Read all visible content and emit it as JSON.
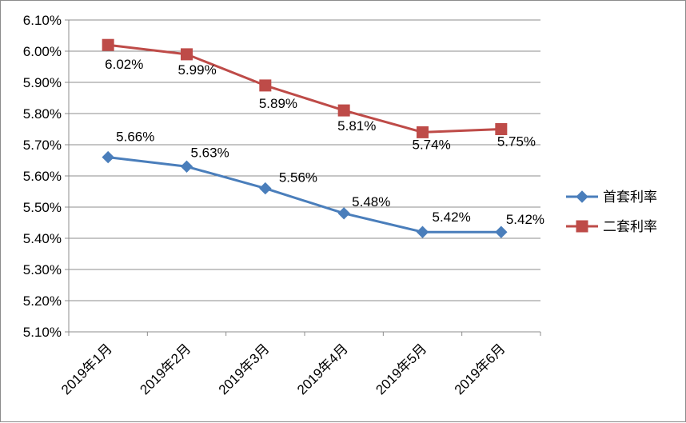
{
  "chart_data": {
    "type": "line",
    "categories": [
      "2019年1月",
      "2019年2月",
      "2019年3月",
      "2019年4月",
      "2019年5月",
      "2019年6月"
    ],
    "ylim": [
      5.1,
      6.1
    ],
    "y_ticks": [
      "5.10%",
      "5.20%",
      "5.30%",
      "5.40%",
      "5.50%",
      "5.60%",
      "5.70%",
      "5.80%",
      "5.90%",
      "6.00%",
      "6.10%"
    ],
    "grid": "horizontal",
    "legend_position": "right",
    "series": [
      {
        "name": "首套利率",
        "values": [
          5.66,
          5.63,
          5.56,
          5.48,
          5.42,
          5.42
        ],
        "labels": [
          "5.66%",
          "5.63%",
          "5.56%",
          "5.48%",
          "5.42%",
          "5.42%"
        ],
        "color": "#4a7ebb",
        "marker": "diamond"
      },
      {
        "name": "二套利率",
        "values": [
          6.02,
          5.99,
          5.89,
          5.81,
          5.74,
          5.75
        ],
        "labels": [
          "6.02%",
          "5.99%",
          "5.89%",
          "5.81%",
          "5.74%",
          "5.75%"
        ],
        "color": "#be4b48",
        "marker": "square"
      }
    ]
  }
}
